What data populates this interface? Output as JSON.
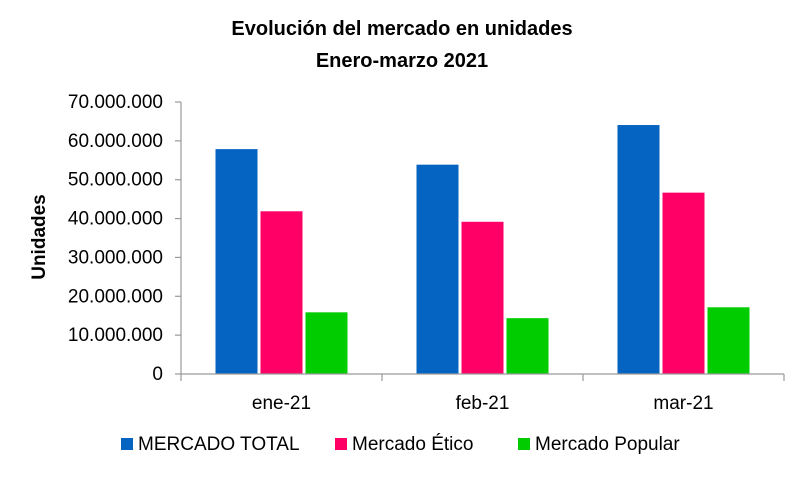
{
  "chart_data": {
    "type": "bar",
    "title": "Evolución del mercado en unidades",
    "subtitle": "Enero-marzo 2021",
    "xlabel": "",
    "ylabel": "Unidades",
    "categories": [
      "ene-21",
      "feb-21",
      "mar-21"
    ],
    "ylim": [
      0,
      70000000
    ],
    "yticks": [
      "0",
      "10.000.000",
      "20.000.000",
      "30.000.000",
      "40.000.000",
      "50.000.000",
      "60.000.000",
      "70.000.000"
    ],
    "ytick_values": [
      0,
      10000000,
      20000000,
      30000000,
      40000000,
      50000000,
      60000000,
      70000000
    ],
    "grid": false,
    "legend_position": "bottom",
    "series": [
      {
        "name": "MERCADO TOTAL",
        "values": [
          58000000,
          54000000,
          64200000
        ],
        "color": "#0563c1"
      },
      {
        "name": "Mercado Ético",
        "values": [
          42000000,
          39300000,
          46800000
        ],
        "color": "#ff0066"
      },
      {
        "name": "Mercado Popular",
        "values": [
          16000000,
          14500000,
          17300000
        ],
        "color": "#00cc00"
      }
    ]
  }
}
